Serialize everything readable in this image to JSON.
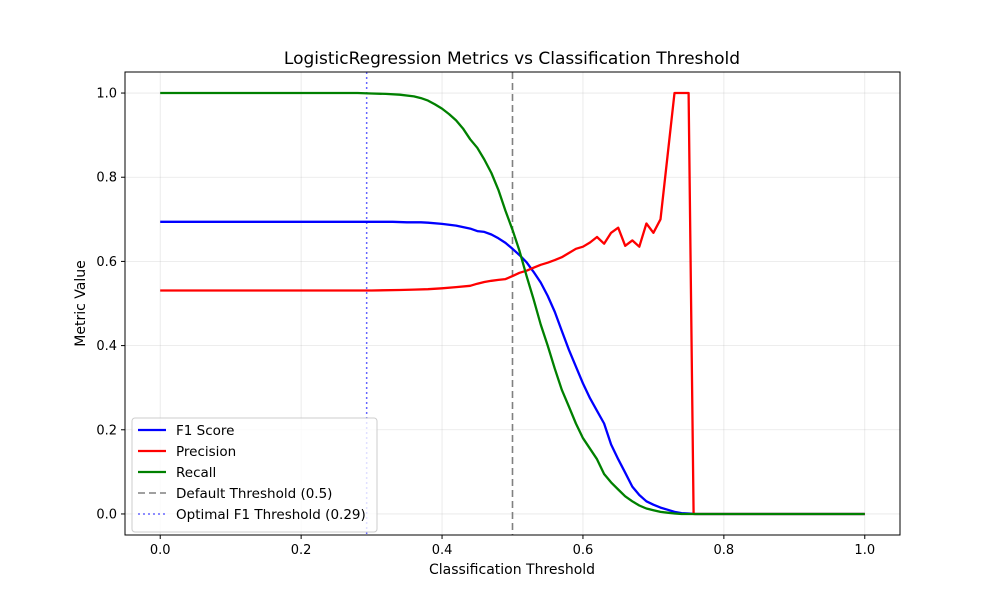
{
  "chart_data": {
    "type": "line",
    "title": "LogisticRegression Metrics vs Classification Threshold",
    "xlabel": "Classification Threshold",
    "ylabel": "Metric Value",
    "xlim": [
      -0.05,
      1.05
    ],
    "ylim": [
      -0.05,
      1.05
    ],
    "x_ticks": [
      0.0,
      0.2,
      0.4,
      0.6,
      0.8,
      1.0
    ],
    "x_tick_labels": [
      "0.0",
      "0.2",
      "0.4",
      "0.6",
      "0.8",
      "1.0"
    ],
    "y_ticks": [
      0.0,
      0.2,
      0.4,
      0.6,
      0.8,
      1.0
    ],
    "y_tick_labels": [
      "0.0",
      "0.2",
      "0.4",
      "0.6",
      "0.8",
      "1.0"
    ],
    "grid": true,
    "legend_position": "lower-left",
    "series": [
      {
        "name": "F1 Score",
        "color": "#0000ff",
        "x": [
          0.0,
          0.05,
          0.1,
          0.15,
          0.2,
          0.25,
          0.3,
          0.33,
          0.35,
          0.37,
          0.38,
          0.4,
          0.42,
          0.44,
          0.45,
          0.46,
          0.47,
          0.48,
          0.49,
          0.5,
          0.51,
          0.52,
          0.53,
          0.54,
          0.55,
          0.56,
          0.57,
          0.58,
          0.59,
          0.6,
          0.61,
          0.62,
          0.63,
          0.64,
          0.65,
          0.66,
          0.67,
          0.68,
          0.69,
          0.7,
          0.71,
          0.72,
          0.73,
          0.74,
          0.75,
          0.76,
          0.8,
          0.9,
          1.0
        ],
        "y": [
          0.694,
          0.694,
          0.694,
          0.694,
          0.694,
          0.694,
          0.694,
          0.694,
          0.693,
          0.693,
          0.692,
          0.689,
          0.685,
          0.678,
          0.672,
          0.67,
          0.664,
          0.655,
          0.644,
          0.63,
          0.615,
          0.598,
          0.575,
          0.55,
          0.518,
          0.48,
          0.435,
          0.39,
          0.35,
          0.31,
          0.275,
          0.245,
          0.215,
          0.165,
          0.13,
          0.098,
          0.065,
          0.045,
          0.03,
          0.022,
          0.015,
          0.01,
          0.005,
          0.002,
          0.001,
          0.0,
          0.0,
          0.0,
          0.0
        ]
      },
      {
        "name": "Precision",
        "color": "#ff0000",
        "x": [
          0.0,
          0.1,
          0.2,
          0.3,
          0.34,
          0.36,
          0.38,
          0.4,
          0.42,
          0.44,
          0.45,
          0.46,
          0.47,
          0.48,
          0.49,
          0.5,
          0.51,
          0.52,
          0.53,
          0.54,
          0.55,
          0.56,
          0.57,
          0.58,
          0.59,
          0.6,
          0.61,
          0.62,
          0.63,
          0.64,
          0.65,
          0.66,
          0.67,
          0.68,
          0.69,
          0.7,
          0.71,
          0.72,
          0.73,
          0.74,
          0.75,
          0.757,
          0.8,
          0.9,
          1.0
        ],
        "y": [
          0.531,
          0.531,
          0.531,
          0.531,
          0.532,
          0.533,
          0.534,
          0.536,
          0.539,
          0.542,
          0.547,
          0.551,
          0.554,
          0.556,
          0.558,
          0.565,
          0.573,
          0.578,
          0.585,
          0.592,
          0.597,
          0.603,
          0.61,
          0.62,
          0.63,
          0.635,
          0.645,
          0.658,
          0.642,
          0.668,
          0.68,
          0.637,
          0.65,
          0.635,
          0.69,
          0.668,
          0.7,
          0.85,
          1.0,
          1.0,
          1.0,
          0.0,
          0.0,
          0.0,
          0.0
        ]
      },
      {
        "name": "Recall",
        "color": "#008000",
        "x": [
          0.0,
          0.05,
          0.1,
          0.15,
          0.2,
          0.25,
          0.28,
          0.3,
          0.32,
          0.34,
          0.36,
          0.37,
          0.38,
          0.39,
          0.4,
          0.41,
          0.42,
          0.43,
          0.44,
          0.45,
          0.46,
          0.47,
          0.48,
          0.49,
          0.5,
          0.51,
          0.52,
          0.53,
          0.54,
          0.55,
          0.56,
          0.57,
          0.58,
          0.59,
          0.6,
          0.61,
          0.62,
          0.63,
          0.64,
          0.65,
          0.66,
          0.67,
          0.68,
          0.69,
          0.7,
          0.71,
          0.72,
          0.73,
          0.74,
          0.75,
          0.8,
          0.9,
          1.0
        ],
        "y": [
          1.0,
          1.0,
          1.0,
          1.0,
          1.0,
          1.0,
          1.0,
          0.999,
          0.998,
          0.996,
          0.992,
          0.988,
          0.982,
          0.973,
          0.963,
          0.95,
          0.935,
          0.915,
          0.89,
          0.87,
          0.842,
          0.81,
          0.77,
          0.72,
          0.675,
          0.625,
          0.565,
          0.51,
          0.45,
          0.4,
          0.345,
          0.295,
          0.255,
          0.215,
          0.18,
          0.155,
          0.13,
          0.095,
          0.075,
          0.058,
          0.042,
          0.03,
          0.02,
          0.013,
          0.009,
          0.005,
          0.003,
          0.001,
          0.0,
          0.0,
          0.0,
          0.0,
          0.0
        ]
      }
    ],
    "reference_lines": [
      {
        "name": "Default Threshold (0.5)",
        "x": 0.5,
        "color": "#808080",
        "style": "dashed"
      },
      {
        "name": "Optimal F1 Threshold (0.29)",
        "x": 0.293,
        "color": "#6666ff",
        "style": "dotted"
      }
    ]
  }
}
